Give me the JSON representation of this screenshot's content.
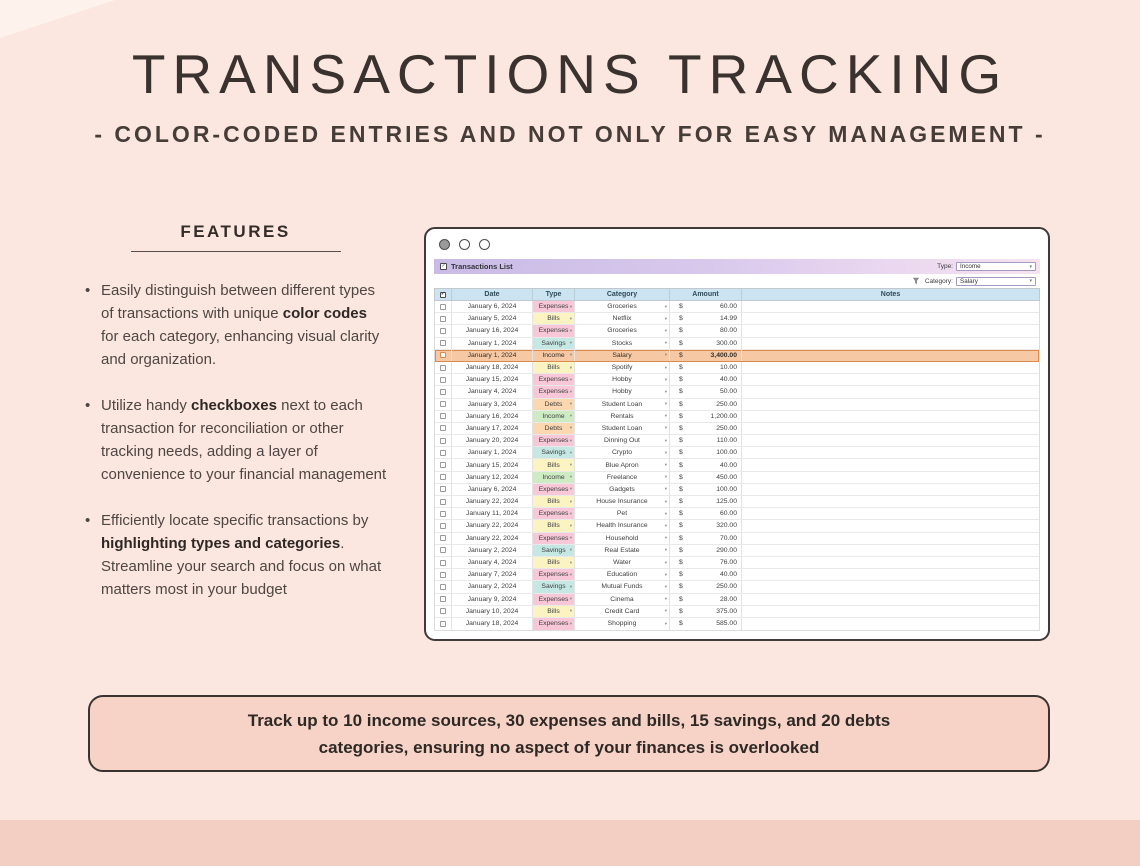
{
  "header": {
    "title": "TRANSACTIONS TRACKING",
    "subtitle": "- COLOR-CODED ENTRIES AND NOT ONLY FOR EASY MANAGEMENT -"
  },
  "features": {
    "heading": "FEATURES",
    "items": [
      {
        "segments": [
          {
            "text": "Easily distinguish between different types of transactions with unique ",
            "bold": false
          },
          {
            "text": "color codes",
            "bold": true
          },
          {
            "text": " for each category, enhancing visual clarity and organization.",
            "bold": false
          }
        ]
      },
      {
        "segments": [
          {
            "text": "Utilize handy ",
            "bold": false
          },
          {
            "text": "checkboxes",
            "bold": true
          },
          {
            "text": " next to each transaction for reconciliation or other tracking needs, adding a layer of convenience to your financial management",
            "bold": false
          }
        ]
      },
      {
        "segments": [
          {
            "text": "Efficiently locate specific transactions by ",
            "bold": false
          },
          {
            "text": "highlighting types and categories",
            "bold": true
          },
          {
            "text": ". Streamline your search and focus on what matters most in your budget",
            "bold": false
          }
        ]
      }
    ]
  },
  "spreadsheet": {
    "title": "Transactions List",
    "filters": [
      {
        "label": "Type:",
        "value": "Income"
      },
      {
        "label": "Category:",
        "value": "Salary"
      }
    ],
    "columns": [
      "Date",
      "Type",
      "Category",
      "Amount",
      "Notes"
    ],
    "currency_symbol": "$",
    "type_colors": {
      "Expenses": "#f8c8d8",
      "Bills": "#fcf3c2",
      "Savings": "#c6e8e4",
      "Income": "#ceecc4",
      "Debts": "#fbd8b0"
    },
    "highlight": {
      "row_index": 4,
      "background": "#f6c9a4",
      "border": "#dd8a4f"
    },
    "rows": [
      {
        "date": "January 6, 2024",
        "type": "Expenses",
        "category": "Groceries",
        "amount": "60.00",
        "notes": ""
      },
      {
        "date": "January 5, 2024",
        "type": "Bills",
        "category": "Netflix",
        "amount": "14.99",
        "notes": ""
      },
      {
        "date": "January 16, 2024",
        "type": "Expenses",
        "category": "Groceries",
        "amount": "80.00",
        "notes": ""
      },
      {
        "date": "January 1, 2024",
        "type": "Savings",
        "category": "Stocks",
        "amount": "300.00",
        "notes": ""
      },
      {
        "date": "January 1, 2024",
        "type": "Income",
        "category": "Salary",
        "amount": "3,400.00",
        "notes": ""
      },
      {
        "date": "January 18, 2024",
        "type": "Bills",
        "category": "Spotify",
        "amount": "10.00",
        "notes": ""
      },
      {
        "date": "January 15, 2024",
        "type": "Expenses",
        "category": "Hobby",
        "amount": "40.00",
        "notes": ""
      },
      {
        "date": "January 4, 2024",
        "type": "Expenses",
        "category": "Hobby",
        "amount": "50.00",
        "notes": ""
      },
      {
        "date": "January 3, 2024",
        "type": "Debts",
        "category": "Student Loan",
        "amount": "250.00",
        "notes": ""
      },
      {
        "date": "January 16, 2024",
        "type": "Income",
        "category": "Rentals",
        "amount": "1,200.00",
        "notes": ""
      },
      {
        "date": "January 17, 2024",
        "type": "Debts",
        "category": "Student Loan",
        "amount": "250.00",
        "notes": ""
      },
      {
        "date": "January 20, 2024",
        "type": "Expenses",
        "category": "Dinning Out",
        "amount": "110.00",
        "notes": ""
      },
      {
        "date": "January 1, 2024",
        "type": "Savings",
        "category": "Crypto",
        "amount": "100.00",
        "notes": ""
      },
      {
        "date": "January 15, 2024",
        "type": "Bills",
        "category": "Blue Apron",
        "amount": "40.00",
        "notes": ""
      },
      {
        "date": "January 12, 2024",
        "type": "Income",
        "category": "Freelance",
        "amount": "450.00",
        "notes": ""
      },
      {
        "date": "January 6, 2024",
        "type": "Expenses",
        "category": "Gadgets",
        "amount": "100.00",
        "notes": ""
      },
      {
        "date": "January 22, 2024",
        "type": "Bills",
        "category": "House Insurance",
        "amount": "125.00",
        "notes": ""
      },
      {
        "date": "January 11, 2024",
        "type": "Expenses",
        "category": "Pet",
        "amount": "60.00",
        "notes": ""
      },
      {
        "date": "January 22, 2024",
        "type": "Bills",
        "category": "Health Insurance",
        "amount": "320.00",
        "notes": ""
      },
      {
        "date": "January 22, 2024",
        "type": "Expenses",
        "category": "Household",
        "amount": "70.00",
        "notes": ""
      },
      {
        "date": "January 2, 2024",
        "type": "Savings",
        "category": "Real Estate",
        "amount": "290.00",
        "notes": ""
      },
      {
        "date": "January 4, 2024",
        "type": "Bills",
        "category": "Water",
        "amount": "76.00",
        "notes": ""
      },
      {
        "date": "January 7, 2024",
        "type": "Expenses",
        "category": "Education",
        "amount": "40.00",
        "notes": ""
      },
      {
        "date": "January 2, 2024",
        "type": "Savings",
        "category": "Mutual Funds",
        "amount": "250.00",
        "notes": ""
      },
      {
        "date": "January 9, 2024",
        "type": "Expenses",
        "category": "Cinema",
        "amount": "28.00",
        "notes": ""
      },
      {
        "date": "January 10, 2024",
        "type": "Bills",
        "category": "Credit Card",
        "amount": "375.00",
        "notes": ""
      },
      {
        "date": "January 18, 2024",
        "type": "Expenses",
        "category": "Shopping",
        "amount": "585.00",
        "notes": ""
      }
    ]
  },
  "callout": {
    "line1": "Track up to 10 income sources, 30 expenses and bills, 15 savings, and 20 debts",
    "line2": "categories, ensuring no aspect of your finances is overlooked"
  }
}
